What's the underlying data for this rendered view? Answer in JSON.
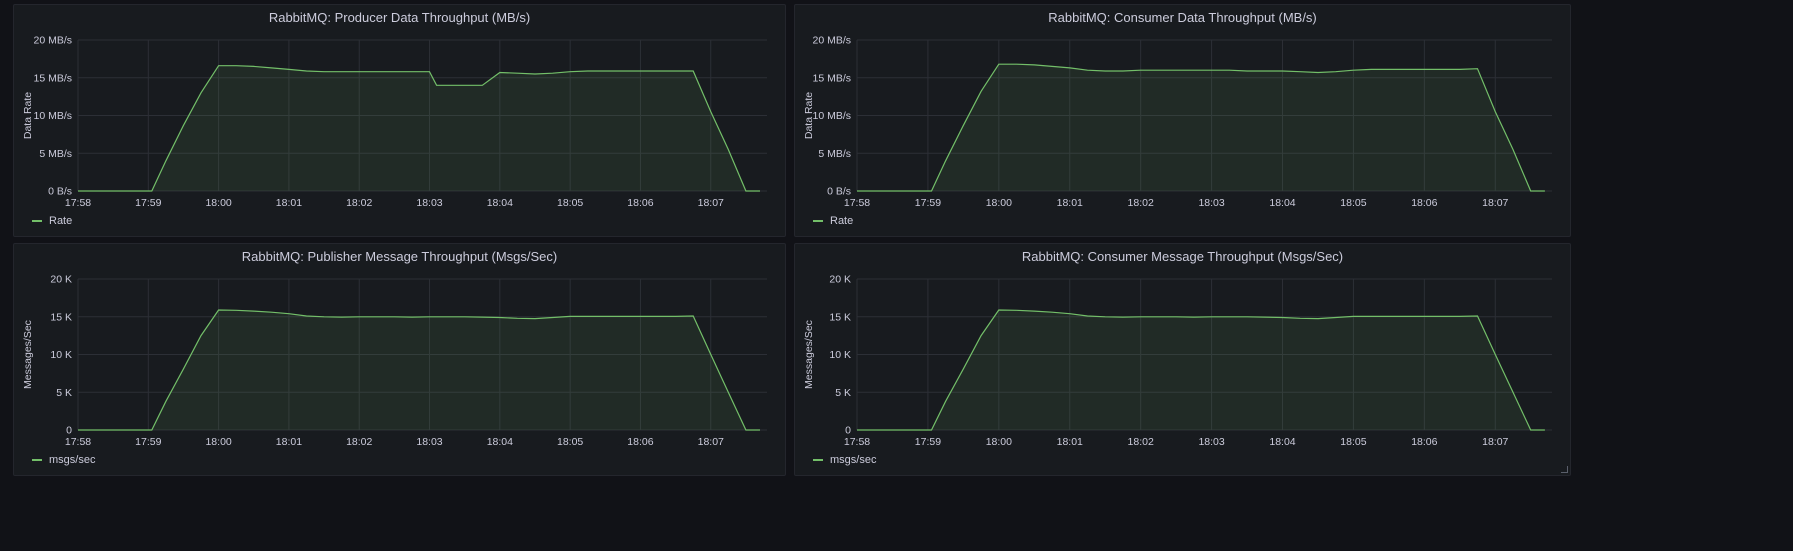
{
  "colors": {
    "series": "#73bf69",
    "fill": "rgba(115,191,105,0.10)",
    "grid": "#2c2f36",
    "text": "#ccccdc"
  },
  "panels": [
    {
      "title": "RabbitMQ: Producer Data Throughput (MB/s)",
      "legend_icon": "line-swatch-icon",
      "chart_data": {
        "type": "area",
        "x_ticks": [
          "17:58",
          "17:59",
          "18:00",
          "18:01",
          "18:02",
          "18:03",
          "18:04",
          "18:05",
          "18:06",
          "18:07"
        ],
        "x_range_minutes": [
          0,
          9.8
        ],
        "ylabel": "Data Rate",
        "y_ticks": [
          "0 B/s",
          "5 MB/s",
          "10 MB/s",
          "15 MB/s",
          "20 MB/s"
        ],
        "y_tick_values": [
          0,
          5,
          10,
          15,
          20
        ],
        "ylim": [
          0,
          20
        ],
        "grid": true,
        "legend_position": "bottom-left",
        "series": [
          {
            "name": "Rate",
            "x_minutes": [
              0,
              1.05,
              1.25,
              1.5,
              1.75,
              2.0,
              2.25,
              2.5,
              2.75,
              3.0,
              3.25,
              3.5,
              3.75,
              4.0,
              4.25,
              4.5,
              4.75,
              5.0,
              5.1,
              5.2,
              5.45,
              5.75,
              6.0,
              6.25,
              6.5,
              6.75,
              7.0,
              7.25,
              7.5,
              7.75,
              8.0,
              8.25,
              8.5,
              8.75,
              9.0,
              9.25,
              9.5,
              9.7
            ],
            "values": [
              0,
              0,
              4,
              8.7,
              13,
              16.6,
              16.6,
              16.5,
              16.3,
              16.1,
              15.9,
              15.8,
              15.8,
              15.8,
              15.8,
              15.8,
              15.8,
              15.8,
              14.0,
              14.0,
              14.0,
              14.0,
              15.7,
              15.6,
              15.5,
              15.6,
              15.8,
              15.9,
              15.9,
              15.9,
              15.9,
              15.9,
              15.9,
              15.9,
              10.5,
              5.5,
              0,
              0
            ]
          }
        ]
      }
    },
    {
      "title": "RabbitMQ: Consumer Data Throughput (MB/s)",
      "legend_icon": "line-swatch-icon",
      "chart_data": {
        "type": "area",
        "x_ticks": [
          "17:58",
          "17:59",
          "18:00",
          "18:01",
          "18:02",
          "18:03",
          "18:04",
          "18:05",
          "18:06",
          "18:07"
        ],
        "x_range_minutes": [
          0,
          9.8
        ],
        "ylabel": "Data Rate",
        "y_ticks": [
          "0 B/s",
          "5 MB/s",
          "10 MB/s",
          "15 MB/s",
          "20 MB/s"
        ],
        "y_tick_values": [
          0,
          5,
          10,
          15,
          20
        ],
        "ylim": [
          0,
          20
        ],
        "grid": true,
        "legend_position": "bottom-left",
        "series": [
          {
            "name": "Rate",
            "x_minutes": [
              0,
              1.05,
              1.25,
              1.5,
              1.75,
              2.0,
              2.25,
              2.5,
              2.75,
              3.0,
              3.25,
              3.5,
              3.75,
              4.0,
              4.25,
              4.5,
              4.75,
              5.0,
              5.25,
              5.5,
              5.75,
              6.0,
              6.25,
              6.5,
              6.75,
              7.0,
              7.25,
              7.5,
              7.75,
              8.0,
              8.25,
              8.5,
              8.75,
              9.0,
              9.25,
              9.5,
              9.7
            ],
            "values": [
              0,
              0,
              4,
              8.7,
              13.2,
              16.8,
              16.8,
              16.7,
              16.5,
              16.3,
              16.0,
              15.9,
              15.9,
              16.0,
              16.0,
              16.0,
              16.0,
              16.0,
              16.0,
              15.9,
              15.9,
              15.9,
              15.8,
              15.7,
              15.8,
              16.0,
              16.1,
              16.1,
              16.1,
              16.1,
              16.1,
              16.1,
              16.2,
              10.5,
              5.5,
              0,
              0
            ]
          }
        ]
      }
    },
    {
      "title": "RabbitMQ: Publisher Message Throughput (Msgs/Sec)",
      "legend_icon": "line-swatch-icon",
      "chart_data": {
        "type": "area",
        "x_ticks": [
          "17:58",
          "17:59",
          "18:00",
          "18:01",
          "18:02",
          "18:03",
          "18:04",
          "18:05",
          "18:06",
          "18:07"
        ],
        "x_range_minutes": [
          0,
          9.8
        ],
        "ylabel": "Messages/Sec",
        "y_ticks": [
          "0",
          "5 K",
          "10 K",
          "15 K",
          "20 K"
        ],
        "y_tick_values": [
          0,
          5000,
          10000,
          15000,
          20000
        ],
        "ylim": [
          0,
          20000
        ],
        "grid": true,
        "legend_position": "bottom-left",
        "series": [
          {
            "name": "msgs/sec",
            "x_minutes": [
              0,
              1.05,
              1.25,
              1.5,
              1.75,
              2.0,
              2.25,
              2.5,
              2.75,
              3.0,
              3.25,
              3.5,
              3.75,
              4.0,
              4.25,
              4.5,
              4.75,
              5.0,
              5.25,
              5.5,
              5.75,
              6.0,
              6.25,
              6.5,
              6.75,
              7.0,
              7.25,
              7.5,
              7.75,
              8.0,
              8.25,
              8.5,
              8.75,
              9.0,
              9.25,
              9.5,
              9.7
            ],
            "values": [
              0,
              0,
              3800,
              8100,
              12500,
              15900,
              15850,
              15750,
              15600,
              15400,
              15100,
              15000,
              14950,
              15000,
              15000,
              15000,
              14950,
              15000,
              15000,
              15000,
              14950,
              14900,
              14800,
              14750,
              14900,
              15050,
              15050,
              15050,
              15050,
              15050,
              15050,
              15050,
              15100,
              10000,
              5000,
              0,
              0
            ]
          }
        ]
      }
    },
    {
      "title": "RabbitMQ: Consumer Message Throughput (Msgs/Sec)",
      "legend_icon": "line-swatch-icon",
      "chart_data": {
        "type": "area",
        "x_ticks": [
          "17:58",
          "17:59",
          "18:00",
          "18:01",
          "18:02",
          "18:03",
          "18:04",
          "18:05",
          "18:06",
          "18:07"
        ],
        "x_range_minutes": [
          0,
          9.8
        ],
        "ylabel": "Messages/Sec",
        "y_ticks": [
          "0",
          "5 K",
          "10 K",
          "15 K",
          "20 K"
        ],
        "y_tick_values": [
          0,
          5000,
          10000,
          15000,
          20000
        ],
        "ylim": [
          0,
          20000
        ],
        "grid": true,
        "legend_position": "bottom-left",
        "series": [
          {
            "name": "msgs/sec",
            "x_minutes": [
              0,
              1.05,
              1.25,
              1.5,
              1.75,
              2.0,
              2.25,
              2.5,
              2.75,
              3.0,
              3.25,
              3.5,
              3.75,
              4.0,
              4.25,
              4.5,
              4.75,
              5.0,
              5.25,
              5.5,
              5.75,
              6.0,
              6.25,
              6.5,
              6.75,
              7.0,
              7.25,
              7.5,
              7.75,
              8.0,
              8.25,
              8.5,
              8.75,
              9.0,
              9.25,
              9.5,
              9.7
            ],
            "values": [
              0,
              0,
              3800,
              8100,
              12500,
              15900,
              15850,
              15750,
              15600,
              15400,
              15100,
              15000,
              14950,
              15000,
              15000,
              15000,
              14950,
              15000,
              15000,
              15000,
              14950,
              14900,
              14800,
              14750,
              14900,
              15050,
              15050,
              15050,
              15050,
              15050,
              15050,
              15050,
              15100,
              10000,
              5000,
              0,
              0
            ]
          }
        ]
      }
    }
  ]
}
